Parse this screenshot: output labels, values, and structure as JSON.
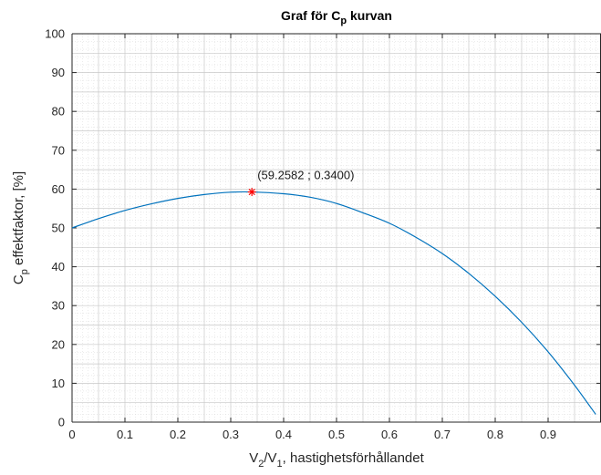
{
  "chart_data": {
    "type": "line",
    "title": {
      "pre": "Graf för C",
      "sub": "p",
      "post": " kurvan"
    },
    "xlabel": {
      "a": "V",
      "a_sub": "2",
      "b": "/V",
      "b_sub": "1",
      "c": ", hastighetsförhållandet"
    },
    "ylabel": {
      "a": "C",
      "a_sub": "p",
      "b": " effektfaktor, [%]"
    },
    "xlim": [
      0,
      1
    ],
    "ylim": [
      0,
      100
    ],
    "xticks": [
      0,
      0.1,
      0.2,
      0.3,
      0.4,
      0.5,
      0.6,
      0.7,
      0.8,
      0.9
    ],
    "xtick_labels": [
      "0",
      "0.1",
      "0.2",
      "0.3",
      "0.4",
      "0.5",
      "0.6",
      "0.7",
      "0.8",
      "0.9"
    ],
    "yticks": [
      0,
      10,
      20,
      30,
      40,
      50,
      60,
      70,
      80,
      90,
      100
    ],
    "ytick_labels": [
      "0",
      "10",
      "20",
      "30",
      "40",
      "50",
      "60",
      "70",
      "80",
      "90",
      "100"
    ],
    "grid": true,
    "minor_grid": true,
    "series": [
      {
        "x": [
          0,
          0.05,
          0.1,
          0.15,
          0.2,
          0.25,
          0.3,
          0.34,
          0.4,
          0.45,
          0.5,
          0.55,
          0.6,
          0.65,
          0.7,
          0.75,
          0.8,
          0.85,
          0.9,
          0.95,
          0.99
        ],
        "values": [
          50.0,
          52.4,
          54.5,
          56.2,
          57.6,
          58.6,
          59.2,
          59.26,
          58.8,
          57.9,
          56.3,
          53.9,
          51.2,
          47.6,
          43.4,
          38.3,
          32.4,
          25.7,
          18.1,
          9.5,
          2.0
        ],
        "color": "#0072BD"
      }
    ],
    "marker": {
      "x": 0.34,
      "y": 59.2582,
      "color": "#ff0000",
      "symbol": "*"
    },
    "annotation": "(59.2582 ; 0.3400)"
  }
}
